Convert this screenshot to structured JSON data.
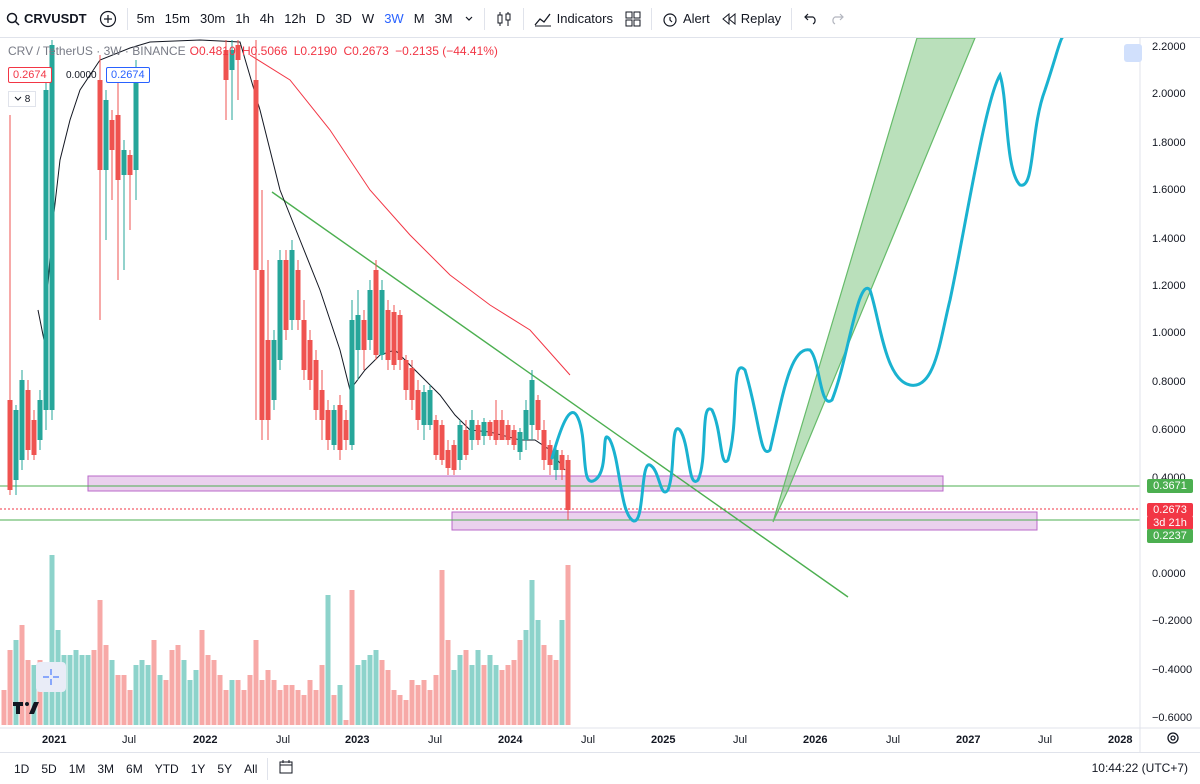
{
  "toolbar": {
    "symbol": "CRVUSDT",
    "timeframes": [
      "5m",
      "15m",
      "30m",
      "1h",
      "4h",
      "12h",
      "D",
      "3D",
      "W",
      "3W",
      "M",
      "3M"
    ],
    "active_timeframe": "3W",
    "indicators_label": "Indicators",
    "alert_label": "Alert",
    "replay_label": "Replay"
  },
  "legend": {
    "title": "CRV / TetherUS · 3W · BINANCE",
    "open": "O0.4810",
    "high": "H0.5066",
    "low": "L0.2190",
    "close": "C0.2673",
    "change": "−0.2135 (−44.41%)",
    "tag1": "0.2674",
    "tag2": "0.0000",
    "tag3": "0.2674",
    "collapse_count": "8"
  },
  "price_axis": {
    "labels": [
      "2.2000",
      "2.0000",
      "1.8000",
      "1.6000",
      "1.4000",
      "1.2000",
      "1.0000",
      "0.8000",
      "0.6000",
      "0.4000",
      "0.0000",
      "−0.2000",
      "−0.4000",
      "−0.6000"
    ],
    "badge_upper": "0.3671",
    "badge_current": "0.2673",
    "badge_countdown": "3d 21h",
    "badge_lower": "0.2237"
  },
  "time_axis": {
    "labels": [
      "2021",
      "Jul",
      "2022",
      "Jul",
      "2023",
      "Jul",
      "2024",
      "Jul",
      "2025",
      "Jul",
      "2026",
      "Jul",
      "2027",
      "Jul",
      "2028"
    ],
    "years": [
      "2021",
      "2022",
      "2023",
      "2024",
      "2025",
      "2026",
      "2027",
      "2028"
    ]
  },
  "bottom_bar": {
    "ranges": [
      "1D",
      "5D",
      "1M",
      "3M",
      "6M",
      "YTD",
      "1Y",
      "5Y",
      "All"
    ],
    "clock": "10:44:22 (UTC+7)"
  },
  "colors": {
    "up": "#26a69a",
    "down": "#ef5350",
    "accent": "#2962ff",
    "projection": "#1ab2d0",
    "trend": "#4caf50",
    "zone": "#e1bee7"
  }
}
